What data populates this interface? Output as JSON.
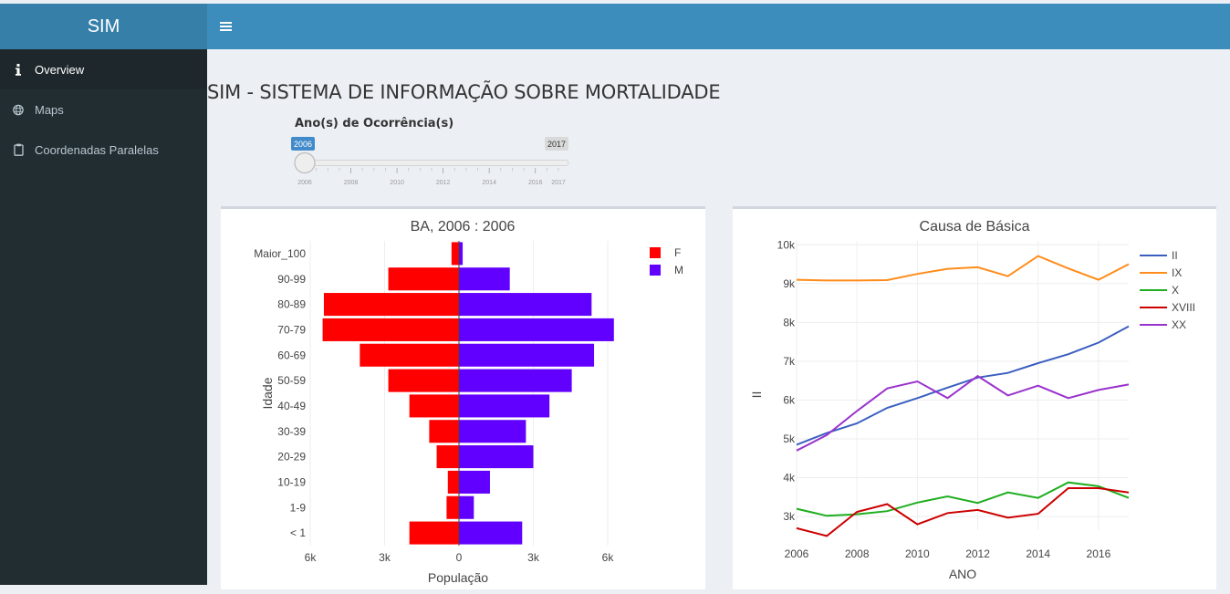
{
  "app": {
    "logo": "SIM"
  },
  "sidebar": {
    "items": [
      {
        "label": "Overview",
        "icon": "info-icon",
        "active": true
      },
      {
        "label": "Maps",
        "icon": "globe-icon",
        "active": false
      },
      {
        "label": "Coordenadas Paralelas",
        "icon": "clipboard-icon",
        "active": false
      }
    ]
  },
  "main": {
    "title": "SIM - SISTEMA DE INFORMAÇÃO SOBRE MORTALIDADE",
    "slider": {
      "label": "Ano(s) de Ocorrência(s)",
      "min": 2006,
      "max": 2017,
      "from": 2006,
      "to": 2017,
      "from_label": "2006",
      "to_label": "2017",
      "tick_labels": [
        "2006",
        "2008",
        "2010",
        "2012",
        "2014",
        "2016",
        "2017"
      ]
    }
  },
  "chart_data": [
    {
      "type": "bar",
      "orientation": "horizontal",
      "title": "BA, 2006 : 2006",
      "xlabel": "População",
      "ylabel": "Idade",
      "xlim": [
        -6000,
        6000
      ],
      "x_tick_labels": [
        "6k",
        "3k",
        "0",
        "3k",
        "6k"
      ],
      "categories": [
        "< 1",
        "1-9",
        "10-19",
        "20-29",
        "30-39",
        "40-49",
        "50-59",
        "60-69",
        "70-79",
        "80-89",
        "90-99",
        "Maior_100"
      ],
      "series": [
        {
          "name": "F",
          "color": "#ff0000",
          "values": [
            -2000,
            -500,
            -450,
            -900,
            -1200,
            -2000,
            -2850,
            -4000,
            -5500,
            -5450,
            -2850,
            -300
          ]
        },
        {
          "name": "M",
          "color": "#6200ff",
          "values": [
            2550,
            600,
            1250,
            3000,
            2700,
            3650,
            4550,
            5450,
            6250,
            5350,
            2050,
            150
          ]
        }
      ],
      "legend": "top-right"
    },
    {
      "type": "line",
      "title": "Causa de Básica",
      "xlabel": "ANO",
      "ylabel": "II",
      "x": [
        2006,
        2007,
        2008,
        2009,
        2010,
        2011,
        2012,
        2013,
        2014,
        2015,
        2016,
        2017
      ],
      "x_tick_labels": [
        "2006",
        "2008",
        "2010",
        "2012",
        "2014",
        "2016"
      ],
      "ylim": [
        2650,
        10100
      ],
      "y_tick_labels": [
        "3k",
        "4k",
        "5k",
        "6k",
        "7k",
        "8k",
        "9k",
        "10k"
      ],
      "series": [
        {
          "name": "II",
          "color": "#3b5fc0",
          "values": [
            4850,
            5150,
            5400,
            5800,
            6050,
            6320,
            6580,
            6700,
            6950,
            7180,
            7480,
            7900
          ]
        },
        {
          "name": "IX",
          "color": "#ff8c1a",
          "values": [
            9100,
            9080,
            9080,
            9090,
            9250,
            9380,
            9420,
            9190,
            9710,
            9390,
            9100,
            9500
          ]
        },
        {
          "name": "X",
          "color": "#1fae1f",
          "values": [
            3200,
            3020,
            3060,
            3140,
            3360,
            3520,
            3350,
            3620,
            3480,
            3880,
            3780,
            3480
          ]
        },
        {
          "name": "XVIII",
          "color": "#cc0000",
          "values": [
            2700,
            2500,
            3120,
            3320,
            2800,
            3090,
            3170,
            2970,
            3070,
            3730,
            3730,
            3620
          ]
        },
        {
          "name": "XX",
          "color": "#9933cc",
          "values": [
            4700,
            5100,
            5720,
            6300,
            6480,
            6050,
            6620,
            6120,
            6370,
            6050,
            6260,
            6400
          ]
        }
      ],
      "legend": "top-right"
    }
  ]
}
